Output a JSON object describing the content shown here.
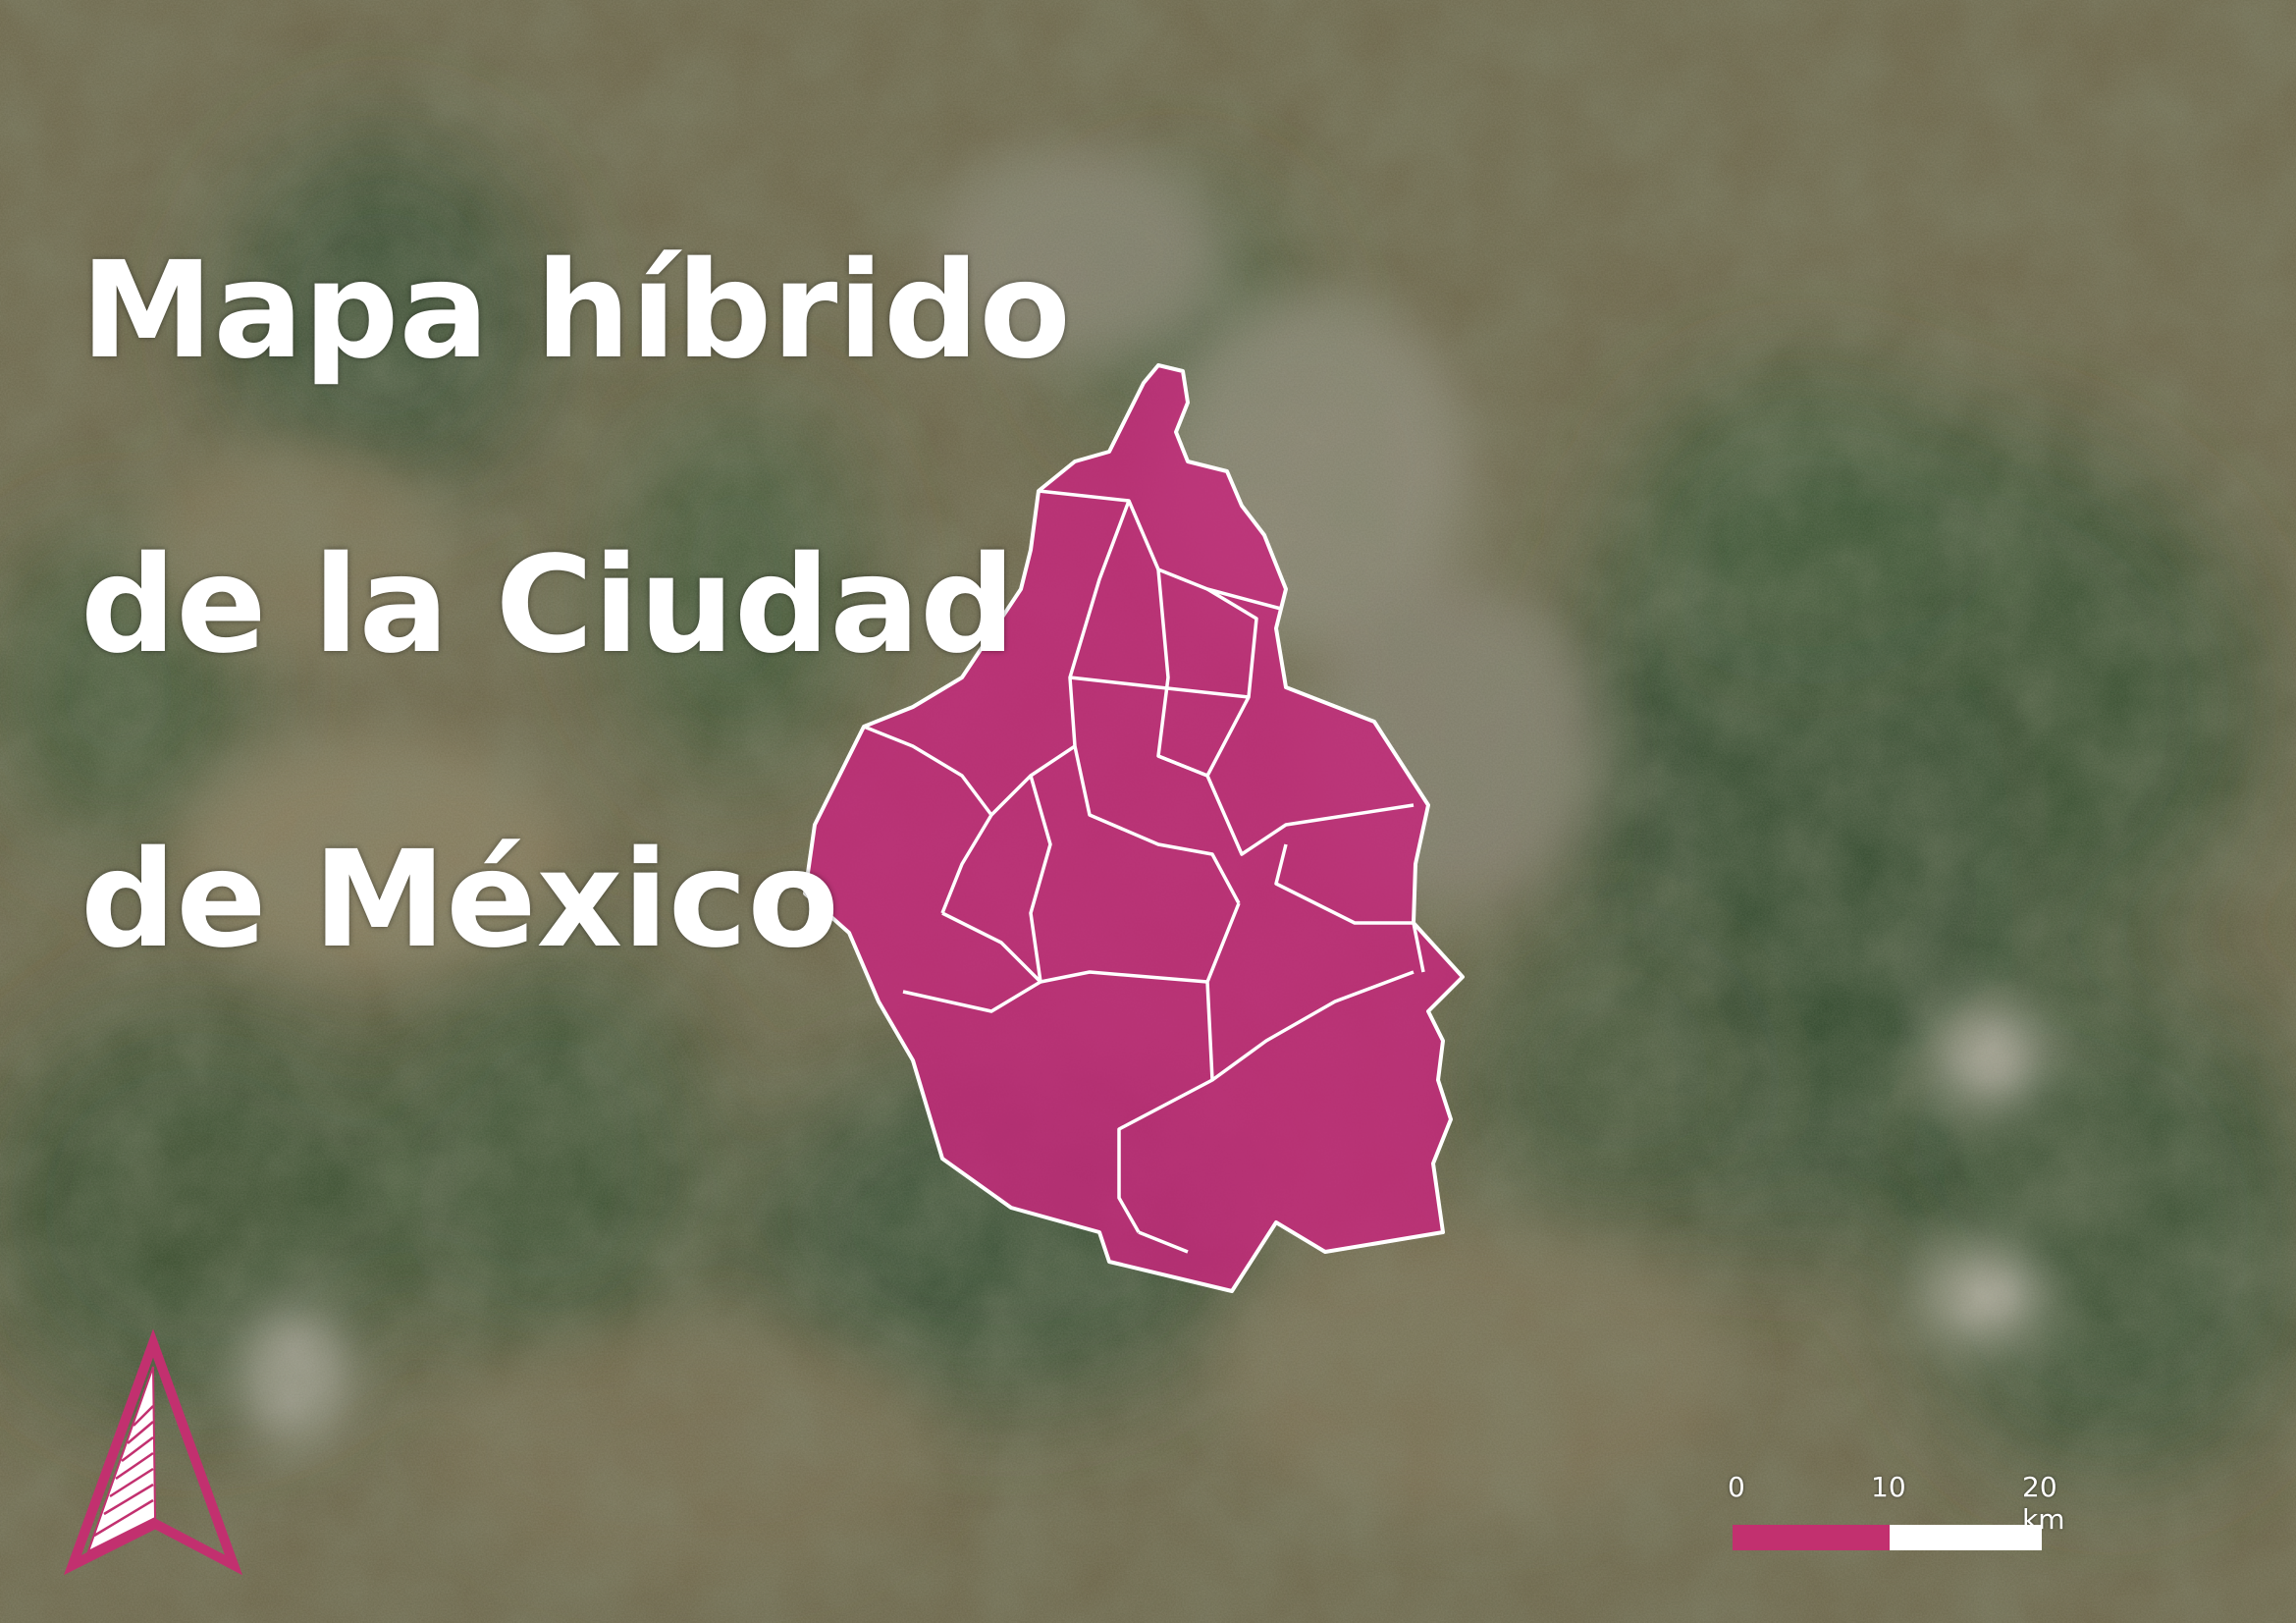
{
  "title": {
    "line1": "Mapa híbrido",
    "line2": "de la Ciudad",
    "line3": "de México"
  },
  "scale_bar": {
    "labels": [
      "0",
      "10",
      "20 km"
    ],
    "accent_color": "#c2306f",
    "secondary_color": "#ffffff"
  },
  "north_arrow": {
    "icon": "north-arrow-icon",
    "color": "#c2306f"
  },
  "boundary": {
    "fill_color": "#c62a7a",
    "stroke_color": "#ffffff"
  },
  "basemap": {
    "type": "satellite-hybrid"
  }
}
